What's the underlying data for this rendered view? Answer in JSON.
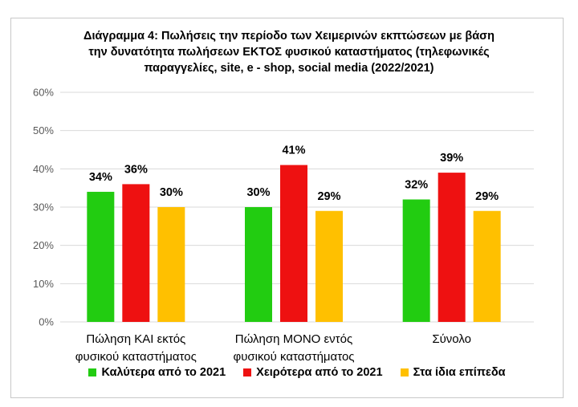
{
  "chart_data": {
    "type": "bar",
    "title_lines": [
      "Διάγραμμα 4: Πωλήσεις την περίοδο των Χειμερινών εκπτώσεων με βάση",
      "την δυνατότητα πωλήσεων ΕΚΤΟΣ φυσικού καταστήματος (τηλεφωνικές",
      "παραγγελίες, site, e - shop, social media (2022/2021)"
    ],
    "categories": [
      [
        "Πώληση ΚΑΙ εκτός",
        "φυσικού καταστήματος"
      ],
      [
        "Πώληση ΜΟΝΟ εντός",
        "φυσικού καταστήματος"
      ],
      [
        "Σύνολο"
      ]
    ],
    "series": [
      {
        "name": "Καλύτερα από το 2021",
        "color": "#22cc11",
        "values": [
          34,
          30,
          32
        ],
        "labels": [
          "34%",
          "30%",
          "32%"
        ]
      },
      {
        "name": "Χειρότερα από το 2021",
        "color": "#ee1111",
        "values": [
          36,
          41,
          39
        ],
        "labels": [
          "36%",
          "41%",
          "39%"
        ]
      },
      {
        "name": "Στα ίδια επίπεδα",
        "color": "#ffc000",
        "values": [
          30,
          29,
          29
        ],
        "labels": [
          "30%",
          "29%",
          "29%"
        ]
      }
    ],
    "ylim": [
      0,
      60
    ],
    "yticks": [
      0,
      10,
      20,
      30,
      40,
      50,
      60
    ],
    "ytick_labels": [
      "0%",
      "10%",
      "20%",
      "30%",
      "40%",
      "50%",
      "60%"
    ],
    "grid": true,
    "legend_position": "bottom"
  }
}
